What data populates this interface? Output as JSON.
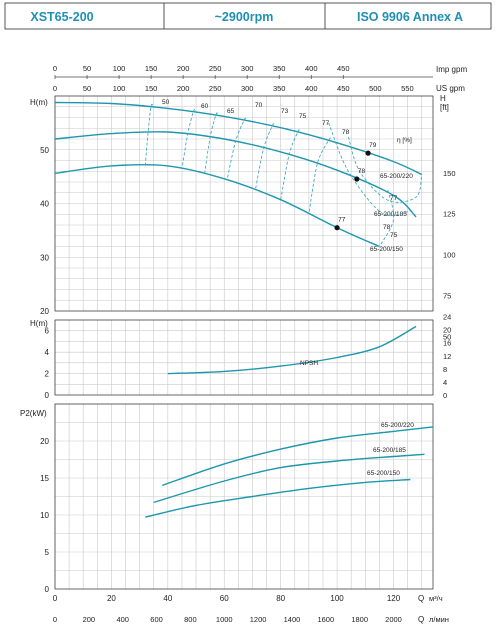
{
  "header": {
    "model": "XST65-200",
    "speed": "~2900rpm",
    "standard": "ISO 9906   Annex A"
  },
  "chart_data": [
    {
      "type": "line",
      "name_id": "head",
      "ylabel": "H(m)",
      "ylabel_right": "H [ft]",
      "ylim": [
        20,
        60
      ],
      "yticks": [
        20,
        30,
        40,
        50
      ],
      "yticks_right": [
        50,
        75,
        100,
        125,
        150
      ],
      "top_axes": [
        {
          "label": "Imp gpm",
          "ticks": [
            0,
            50,
            100,
            150,
            200,
            250,
            300,
            350,
            400,
            450
          ]
        },
        {
          "label": "US gpm",
          "ticks": [
            0,
            50,
            100,
            150,
            200,
            250,
            300,
            350,
            400,
            450,
            500,
            550
          ]
        }
      ],
      "series": [
        {
          "name": "65-200/220",
          "x": [
            0,
            20,
            40,
            60,
            80,
            100,
            120,
            130
          ],
          "y": [
            58.8,
            58.6,
            57.7,
            56.2,
            54.1,
            51.3,
            47.8,
            45.4
          ]
        },
        {
          "name": "65-200/185",
          "x": [
            0,
            20,
            40,
            60,
            80,
            100,
            120,
            128
          ],
          "y": [
            52.0,
            53.0,
            53.3,
            52.0,
            49.6,
            46.2,
            41.5,
            37.5
          ]
        },
        {
          "name": "65-200/150",
          "x": [
            0,
            20,
            40,
            60,
            80,
            100,
            115
          ],
          "y": [
            45.6,
            47.0,
            47.0,
            44.6,
            40.7,
            35.5,
            32.0
          ]
        }
      ],
      "points": [
        {
          "x": 111,
          "y": 50.0,
          "label": "79"
        },
        {
          "x": 107,
          "y": 43.6,
          "label": "78"
        },
        {
          "x": 100,
          "y": 37.2,
          "label": "77"
        }
      ],
      "iso_efficiency": {
        "title": "η [%]",
        "labels": [
          "50",
          "60",
          "65",
          "70",
          "73",
          "75",
          "77",
          "78",
          "78",
          "77",
          "75"
        ]
      }
    },
    {
      "type": "line",
      "name_id": "npsh",
      "ylabel": "H(m)",
      "ylim": [
        0,
        7
      ],
      "yticks": [
        0,
        2,
        4,
        6
      ],
      "yticks_right": [
        0,
        4,
        8,
        12,
        16,
        20,
        24
      ],
      "series": [
        {
          "name": "NPSH",
          "x": [
            40,
            60,
            80,
            100,
            115,
            128
          ],
          "y": [
            2.0,
            2.2,
            2.7,
            3.5,
            4.5,
            6.4
          ]
        }
      ]
    },
    {
      "type": "line",
      "name_id": "power",
      "ylabel": "P2(kW)",
      "ylim": [
        0,
        25
      ],
      "yticks": [
        0,
        5,
        10,
        15,
        20
      ],
      "xlabel": "Q",
      "xunit": "м³/ч",
      "xticks": [
        0,
        20,
        40,
        60,
        80,
        100,
        120
      ],
      "x2label": "Q",
      "x2unit": "л/мин",
      "x2ticks": [
        0,
        200,
        400,
        600,
        800,
        1000,
        1200,
        1400,
        1600,
        1800,
        2000
      ],
      "xlim": [
        0,
        134
      ],
      "series": [
        {
          "name": "65-200/220",
          "x": [
            38,
            60,
            80,
            100,
            120,
            134
          ],
          "y": [
            14.0,
            16.9,
            18.9,
            20.4,
            21.3,
            21.9
          ]
        },
        {
          "name": "65-200/185",
          "x": [
            35,
            60,
            80,
            100,
            120,
            131
          ],
          "y": [
            11.7,
            14.6,
            16.4,
            17.3,
            17.9,
            18.2
          ]
        },
        {
          "name": "65-200/150",
          "x": [
            32,
            50,
            70,
            90,
            110,
            126
          ],
          "y": [
            9.7,
            11.3,
            12.5,
            13.6,
            14.4,
            14.8
          ]
        }
      ]
    }
  ]
}
